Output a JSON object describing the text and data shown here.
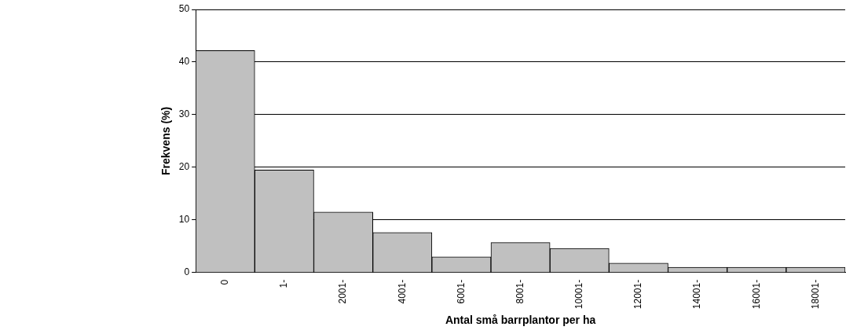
{
  "chart_data": {
    "type": "bar",
    "xlabel": "Antal små barrplantor per ha",
    "ylabel": "Frekvens (%)",
    "categories": [
      "0",
      "1-",
      "2001-",
      "4001-",
      "6001-",
      "8001-",
      "10001-",
      "12001-",
      "14001-",
      "16001-",
      "18001-"
    ],
    "values": [
      42.2,
      19.5,
      11.5,
      7.6,
      3.0,
      5.7,
      4.6,
      1.8,
      1.0,
      1.0,
      1.0
    ],
    "color": "#c0c0c0",
    "ylim": [
      0,
      50
    ],
    "yticks": [
      0,
      10,
      20,
      30,
      40,
      50
    ],
    "grid": "y"
  }
}
